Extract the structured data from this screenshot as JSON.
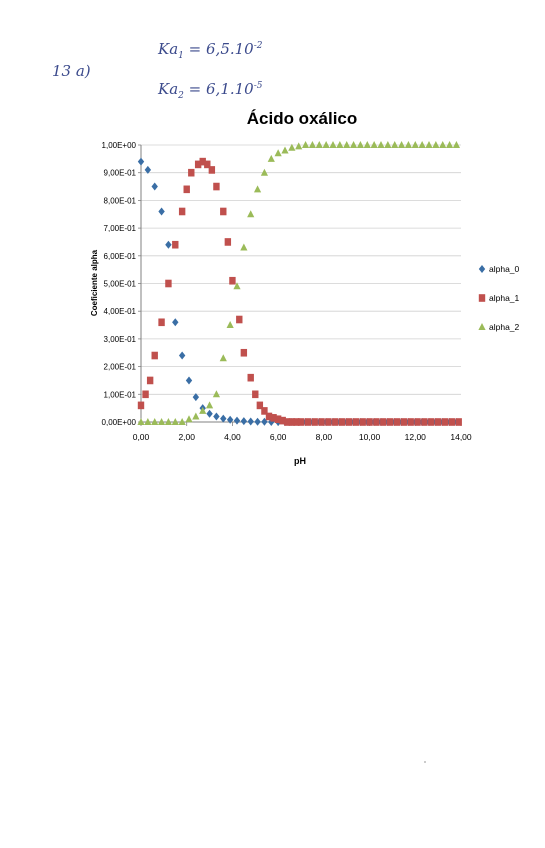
{
  "annotation": {
    "part_label": "13 a)",
    "ka1_label": "Ka",
    "ka1_sub": "1",
    "ka1_value": "= 6,5.10",
    "ka1_exp": "-2",
    "ka2_label": "Ka",
    "ka2_sub": "2",
    "ka2_value": "= 6,1.10",
    "ka2_exp": "-5"
  },
  "colors": {
    "alpha_0": "#3a6ea5",
    "alpha_1": "#c0504d",
    "alpha_2": "#9bbb59",
    "grid": "#d0d0d0",
    "axis": "#808080",
    "text": "#000000"
  },
  "chart_data": {
    "type": "scatter",
    "title": "Ácido oxálico",
    "xlabel": "pH",
    "ylabel": "Coeficiente alpha",
    "xlim": [
      0,
      14
    ],
    "ylim": [
      0,
      1
    ],
    "grid": true,
    "legend_position": "right",
    "x_ticks": [
      "0,00",
      "2,00",
      "4,00",
      "6,00",
      "8,00",
      "10,00",
      "12,00",
      "14,00"
    ],
    "y_ticks": [
      "0,00E+00",
      "1,00E-01",
      "2,00E-01",
      "3,00E-01",
      "4,00E-01",
      "5,00E-01",
      "6,00E-01",
      "7,00E-01",
      "8,00E-01",
      "9,00E-01",
      "1,00E+00"
    ],
    "series": [
      {
        "name": "alpha_0",
        "marker": "diamond",
        "x": [
          0.0,
          0.3,
          0.6,
          0.9,
          1.2,
          1.5,
          1.8,
          2.1,
          2.4,
          2.7,
          3.0,
          3.3,
          3.6,
          3.9,
          4.2,
          4.5,
          4.8,
          5.1,
          5.4,
          5.7,
          6.0,
          6.3,
          6.6,
          6.9,
          7.2,
          7.5,
          7.8,
          8.1,
          8.4,
          8.7,
          9.0,
          9.3,
          9.6,
          9.9,
          10.2,
          10.5,
          10.8,
          11.1,
          11.4,
          11.7,
          12.0,
          12.3,
          12.6,
          12.9,
          13.2,
          13.5,
          13.8
        ],
        "y": [
          0.94,
          0.91,
          0.85,
          0.76,
          0.64,
          0.36,
          0.24,
          0.15,
          0.09,
          0.05,
          0.03,
          0.02,
          0.012,
          0.008,
          0.005,
          0.003,
          0.002,
          0.001,
          0.001,
          0.0,
          0.0,
          0.0,
          0.0,
          0.0,
          0.0,
          0.0,
          0.0,
          0.0,
          0.0,
          0.0,
          0.0,
          0.0,
          0.0,
          0.0,
          0.0,
          0.0,
          0.0,
          0.0,
          0.0,
          0.0,
          0.0,
          0.0,
          0.0,
          0.0,
          0.0,
          0.0,
          0.0
        ]
      },
      {
        "name": "alpha_1",
        "marker": "square",
        "x": [
          0.0,
          0.2,
          0.4,
          0.6,
          0.9,
          1.2,
          1.5,
          1.8,
          2.0,
          2.2,
          2.5,
          2.7,
          2.9,
          3.1,
          3.3,
          3.6,
          3.8,
          4.0,
          4.3,
          4.5,
          4.8,
          5.0,
          5.2,
          5.4,
          5.6,
          5.8,
          6.0,
          6.2,
          6.4,
          6.6,
          6.8,
          7.0,
          7.3,
          7.6,
          7.9,
          8.2,
          8.5,
          8.8,
          9.1,
          9.4,
          9.7,
          10.0,
          10.3,
          10.6,
          10.9,
          11.2,
          11.5,
          11.8,
          12.1,
          12.4,
          12.7,
          13.0,
          13.3,
          13.6,
          13.9
        ],
        "y": [
          0.06,
          0.1,
          0.15,
          0.24,
          0.36,
          0.5,
          0.64,
          0.76,
          0.84,
          0.9,
          0.93,
          0.94,
          0.93,
          0.91,
          0.85,
          0.76,
          0.65,
          0.51,
          0.37,
          0.25,
          0.16,
          0.1,
          0.06,
          0.04,
          0.02,
          0.015,
          0.01,
          0.005,
          0.0,
          0.0,
          0.0,
          0.0,
          0.0,
          0.0,
          0.0,
          0.0,
          0.0,
          0.0,
          0.0,
          0.0,
          0.0,
          0.0,
          0.0,
          0.0,
          0.0,
          0.0,
          0.0,
          0.0,
          0.0,
          0.0,
          0.0,
          0.0,
          0.0,
          0.0,
          0.0
        ]
      },
      {
        "name": "alpha_2",
        "marker": "triangle",
        "x": [
          0.0,
          0.3,
          0.6,
          0.9,
          1.2,
          1.5,
          1.8,
          2.1,
          2.4,
          2.7,
          3.0,
          3.3,
          3.6,
          3.9,
          4.2,
          4.5,
          4.8,
          5.1,
          5.4,
          5.7,
          6.0,
          6.3,
          6.6,
          6.9,
          7.2,
          7.5,
          7.8,
          8.1,
          8.4,
          8.7,
          9.0,
          9.3,
          9.6,
          9.9,
          10.2,
          10.5,
          10.8,
          11.1,
          11.4,
          11.7,
          12.0,
          12.3,
          12.6,
          12.9,
          13.2,
          13.5,
          13.8
        ],
        "y": [
          0.0,
          0.0,
          0.0,
          0.0,
          0.0,
          0.0,
          0.0,
          0.01,
          0.02,
          0.04,
          0.06,
          0.1,
          0.23,
          0.35,
          0.49,
          0.63,
          0.75,
          0.84,
          0.9,
          0.95,
          0.97,
          0.98,
          0.99,
          0.995,
          1.0,
          1.0,
          1.0,
          1.0,
          1.0,
          1.0,
          1.0,
          1.0,
          1.0,
          1.0,
          1.0,
          1.0,
          1.0,
          1.0,
          1.0,
          1.0,
          1.0,
          1.0,
          1.0,
          1.0,
          1.0,
          1.0,
          1.0
        ]
      }
    ]
  }
}
